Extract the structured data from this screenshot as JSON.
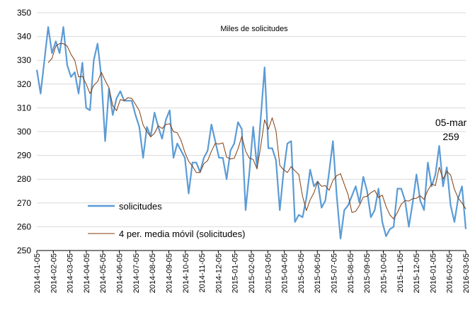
{
  "chart_data": {
    "type": "line",
    "title": "",
    "annotation_top": "Miles de solicitudes",
    "annotation_point": {
      "date": "05-mar",
      "value_label": "259"
    },
    "xlabel": "",
    "ylabel": "",
    "ylim": [
      250,
      350
    ],
    "y_ticks": [
      "250",
      "260",
      "270",
      "280",
      "290",
      "300",
      "310",
      "320",
      "330",
      "340",
      "350"
    ],
    "x_tick_labels": [
      "2014-01-05",
      "2014-02-05",
      "2014-03-05",
      "2014-04-05",
      "2014-05-05",
      "2014-06-05",
      "2014-07-05",
      "2014-08-05",
      "2014-09-05",
      "2014-10-05",
      "2014-11-05",
      "2014-12-05",
      "2015-01-05",
      "2015-02-05",
      "2015-03-05",
      "2015-04-05",
      "2015-05-05",
      "2015-06-05",
      "2015-07-05",
      "2015-08-05",
      "2015-09-05",
      "2015-10-05",
      "2015-11-05",
      "2015-12-05",
      "2016-01-05",
      "2016-02-05",
      "2016-03-05"
    ],
    "grid": "horizontal",
    "legend_placement": "center-left",
    "series": [
      {
        "name": "solicitudes",
        "color": "#5b9bd5",
        "values": [
          326,
          316,
          330,
          344,
          333,
          338,
          333,
          344,
          328,
          323,
          325,
          316,
          329,
          310,
          309,
          330,
          337,
          323,
          296,
          318,
          307,
          314,
          317,
          313,
          313,
          313,
          307,
          302,
          289,
          302,
          298,
          308,
          302,
          297,
          305,
          309,
          289,
          295,
          292,
          289,
          274,
          287,
          287,
          283,
          289,
          292,
          303,
          296,
          289,
          289,
          280,
          292,
          295,
          304,
          301,
          267,
          283,
          302,
          285,
          306,
          327,
          293,
          293,
          288,
          267,
          283,
          295,
          296,
          262,
          265,
          264,
          272,
          284,
          277,
          279,
          268,
          271,
          283,
          296,
          273,
          255,
          267,
          269,
          273,
          277,
          270,
          281,
          275,
          264,
          267,
          276,
          262,
          256,
          259,
          260,
          276,
          276,
          271,
          260,
          270,
          282,
          271,
          267,
          287,
          277,
          282,
          294,
          277,
          285,
          269,
          262,
          272,
          277,
          259
        ]
      },
      {
        "name": "4 per. media móvil (solicitudes)",
        "color": "#843c0c",
        "values": [
          null,
          null,
          null,
          329,
          330.8,
          336,
          337,
          337,
          336,
          332.5,
          330,
          323,
          323.3,
          320,
          316,
          319.5,
          321,
          325,
          321.5,
          318.5,
          311,
          308.8,
          313.5,
          313,
          314.3,
          314,
          311.5,
          308.8,
          302.8,
          300,
          297.8,
          299.3,
          302.5,
          301.3,
          303,
          303.3,
          300,
          299.5,
          296.3,
          291.3,
          287.5,
          285.5,
          282.8,
          282.8,
          286.5,
          287.8,
          291.8,
          295,
          294.8,
          295.3,
          289.3,
          288.5,
          288.8,
          292.8,
          298,
          291.8,
          288.8,
          288.3,
          284.3,
          294,
          305,
          301,
          305.8,
          300.3,
          285.8,
          284,
          282.8,
          285.3,
          283.5,
          282,
          272.8,
          266.8,
          271.3,
          274.3,
          279,
          277,
          277.3,
          275.3,
          279.5,
          281.5,
          282.3,
          277.8,
          273.5,
          266,
          266.5,
          269,
          272.5,
          272.8,
          274.3,
          275.3,
          272.3,
          273.3,
          268.5,
          265,
          263.3,
          266,
          269.5,
          271,
          270.8,
          271.8,
          272,
          273,
          271.5,
          275.3,
          278,
          277.3,
          285,
          280,
          283.3,
          281.8,
          275.8,
          272,
          270,
          267.5
        ]
      }
    ]
  }
}
